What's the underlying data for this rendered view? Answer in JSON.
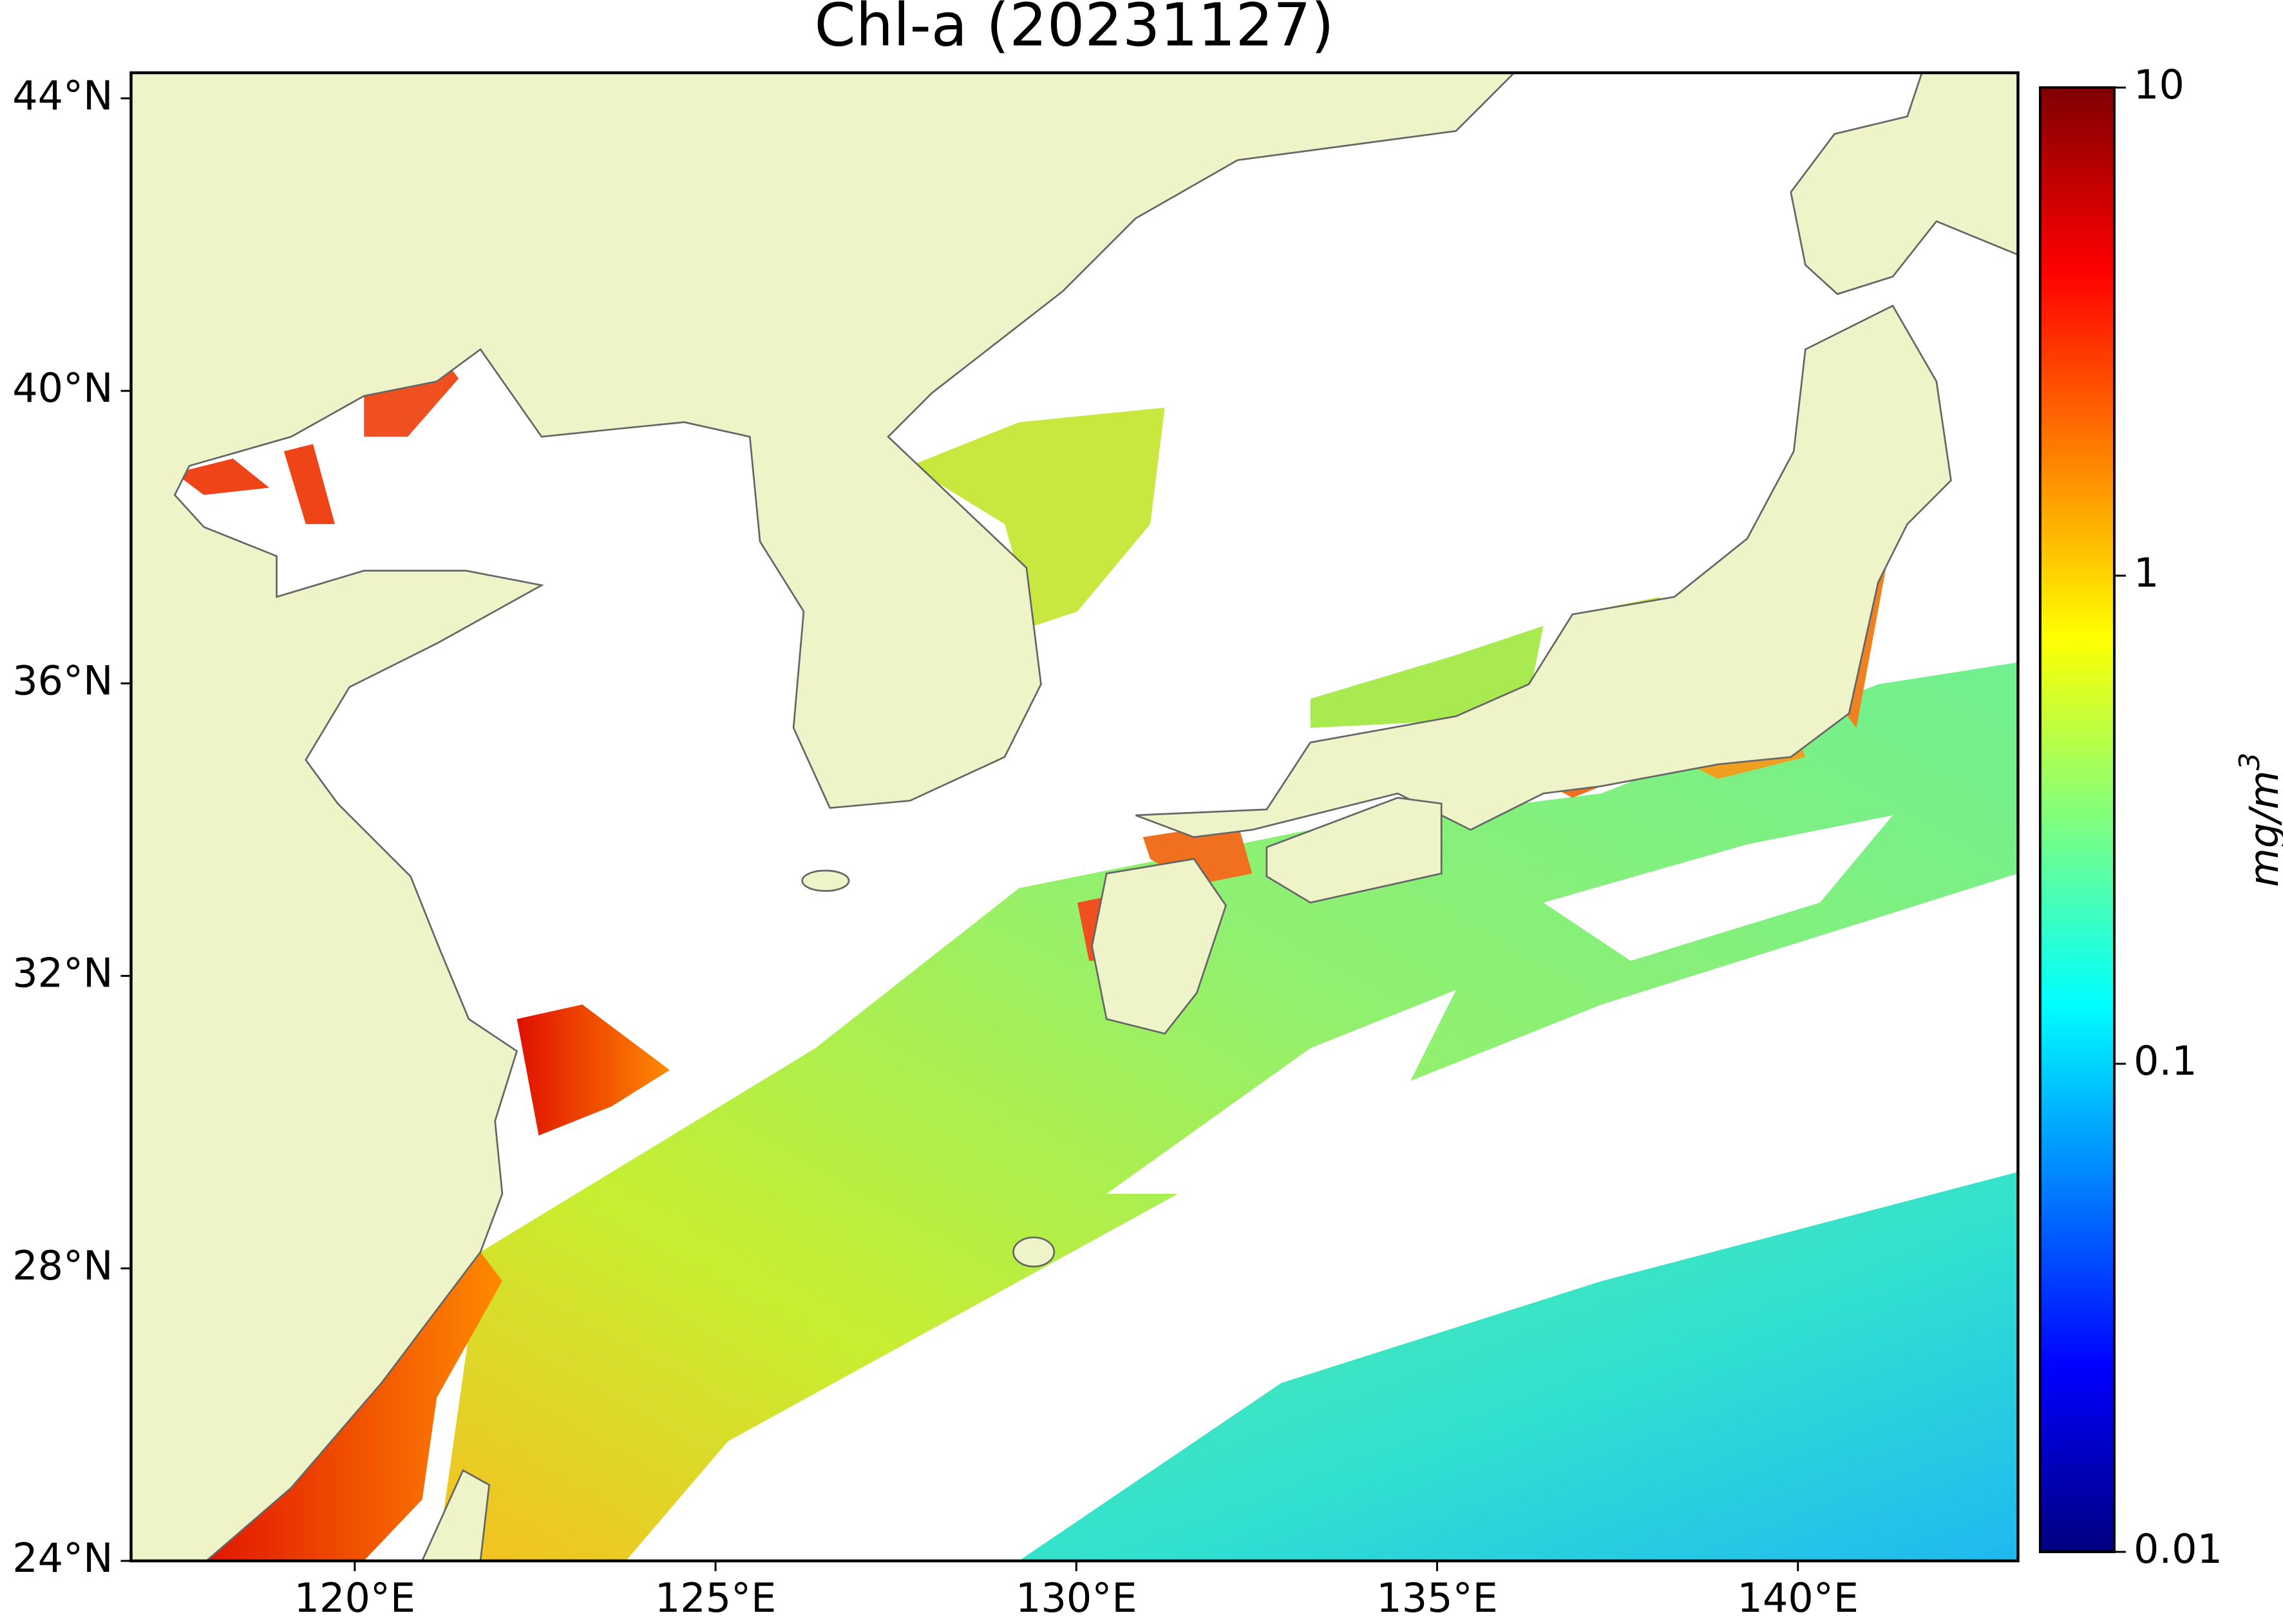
{
  "title": "Chl-a (20231127)",
  "map": {
    "xlim": [
      116.9,
      143.05
    ],
    "ylim": [
      24,
      44.35
    ],
    "xticks": [
      {
        "value": 120,
        "label": "120°E"
      },
      {
        "value": 125,
        "label": "125°E"
      },
      {
        "value": 130,
        "label": "130°E"
      },
      {
        "value": 135,
        "label": "135°E"
      },
      {
        "value": 140,
        "label": "140°E"
      }
    ],
    "yticks": [
      {
        "value": 24,
        "label": "24°N"
      },
      {
        "value": 28,
        "label": "28°N"
      },
      {
        "value": 32,
        "label": "32°N"
      },
      {
        "value": 36,
        "label": "36°N"
      },
      {
        "value": 40,
        "label": "40°N"
      },
      {
        "value": 44,
        "label": "44°N"
      }
    ]
  },
  "colorbar": {
    "label": "mg/m",
    "label_sup": "3",
    "scale": "log",
    "lim": [
      0.01,
      10
    ],
    "ticks": [
      0.01,
      0.1,
      1,
      10
    ],
    "colors": [
      "#00007f",
      "#0000ff",
      "#007fff",
      "#00ffff",
      "#7fff7f",
      "#ffff00",
      "#ff7f00",
      "#ff0000",
      "#7f0000"
    ]
  }
}
